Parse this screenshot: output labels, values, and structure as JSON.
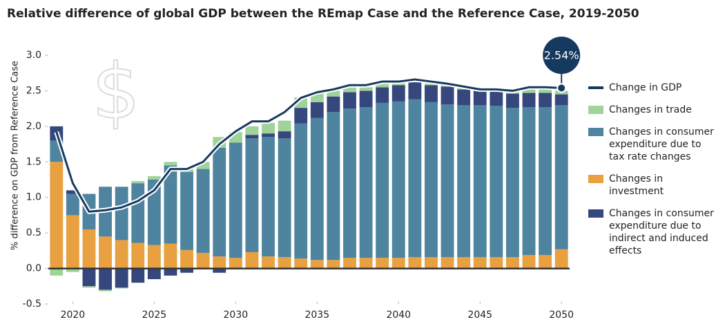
{
  "chart_data": {
    "type": "bar",
    "title": "Relative difference of global GDP between the REmap Case and the Reference Case, 2019-2050",
    "y_label": "% difference on GDP from Reference Case",
    "annotation": "2.54%",
    "x": [
      2019,
      2020,
      2021,
      2022,
      2023,
      2024,
      2025,
      2026,
      2027,
      2028,
      2029,
      2030,
      2031,
      2032,
      2033,
      2034,
      2035,
      2036,
      2037,
      2038,
      2039,
      2040,
      2041,
      2042,
      2043,
      2044,
      2045,
      2046,
      2047,
      2048,
      2049,
      2050
    ],
    "xlim": [
      2018.5,
      2050.5
    ],
    "xticks": [
      2020,
      2025,
      2030,
      2035,
      2040,
      2045,
      2050
    ],
    "ylim": [
      -0.5,
      3.0
    ],
    "yticks": [
      {
        "value": -0.5,
        "label": "-0.5"
      },
      {
        "value": 0,
        "label": "0.0"
      },
      {
        "value": 0.5,
        "label": "0.5"
      },
      {
        "value": 1,
        "label": "1.0"
      },
      {
        "value": 1.5,
        "label": "1.5"
      },
      {
        "value": 2,
        "label": "2.0"
      },
      {
        "value": 2.5,
        "label": "2.5"
      },
      {
        "value": 3,
        "label": "3.0"
      }
    ],
    "series": [
      {
        "name": "Change in GDP",
        "type": "line",
        "color": "#163a5f",
        "values": [
          1.92,
          1.2,
          0.8,
          0.82,
          0.86,
          0.95,
          1.1,
          1.4,
          1.4,
          1.5,
          1.75,
          1.93,
          2.07,
          2.07,
          2.2,
          2.4,
          2.48,
          2.52,
          2.58,
          2.58,
          2.63,
          2.63,
          2.66,
          2.63,
          2.6,
          2.56,
          2.52,
          2.52,
          2.5,
          2.55,
          2.55,
          2.54
        ]
      },
      {
        "name": "Changes in trade",
        "type": "bar",
        "color": "#9fd39a",
        "values": [
          -0.1,
          -0.05,
          -0.02,
          -0.02,
          -0.01,
          0.03,
          0.05,
          0.05,
          0.06,
          0.1,
          0.15,
          0.15,
          0.12,
          0.15,
          0.15,
          0.15,
          0.12,
          0.08,
          0.07,
          0.05,
          0.05,
          0.03,
          0.02,
          0.02,
          0.02,
          0.02,
          0.01,
          0.02,
          0.02,
          0.05,
          0.06,
          0.05
        ]
      },
      {
        "name": "Changes in consumer expenditure due to tax rate changes",
        "type": "bar",
        "color": "#4e849f",
        "values": [
          0.3,
          0.3,
          0.5,
          0.7,
          0.75,
          0.84,
          0.92,
          1.1,
          1.1,
          1.18,
          1.53,
          1.62,
          1.6,
          1.68,
          1.67,
          1.9,
          2.0,
          2.08,
          2.1,
          2.12,
          2.18,
          2.2,
          2.22,
          2.18,
          2.15,
          2.14,
          2.14,
          2.13,
          2.1,
          2.08,
          2.08,
          2.03
        ]
      },
      {
        "name": "Changes in investment",
        "type": "bar",
        "color": "#e8a040",
        "values": [
          1.5,
          0.75,
          0.55,
          0.45,
          0.4,
          0.36,
          0.33,
          0.35,
          0.26,
          0.22,
          0.17,
          0.15,
          0.23,
          0.17,
          0.16,
          0.14,
          0.12,
          0.12,
          0.15,
          0.15,
          0.15,
          0.15,
          0.16,
          0.16,
          0.16,
          0.16,
          0.16,
          0.16,
          0.16,
          0.19,
          0.19,
          0.27
        ]
      },
      {
        "name": "Changes in consumer expenditure due to indirect and induced effects",
        "type": "bar",
        "color": "#35477d",
        "values": [
          0.2,
          0.05,
          -0.25,
          -0.3,
          -0.27,
          -0.2,
          -0.15,
          -0.1,
          -0.06,
          0,
          -0.06,
          0,
          0.05,
          0.05,
          0.1,
          0.22,
          0.22,
          0.22,
          0.23,
          0.23,
          0.22,
          0.23,
          0.24,
          0.24,
          0.25,
          0.22,
          0.2,
          0.2,
          0.2,
          0.2,
          0.2,
          0.15
        ]
      }
    ]
  }
}
